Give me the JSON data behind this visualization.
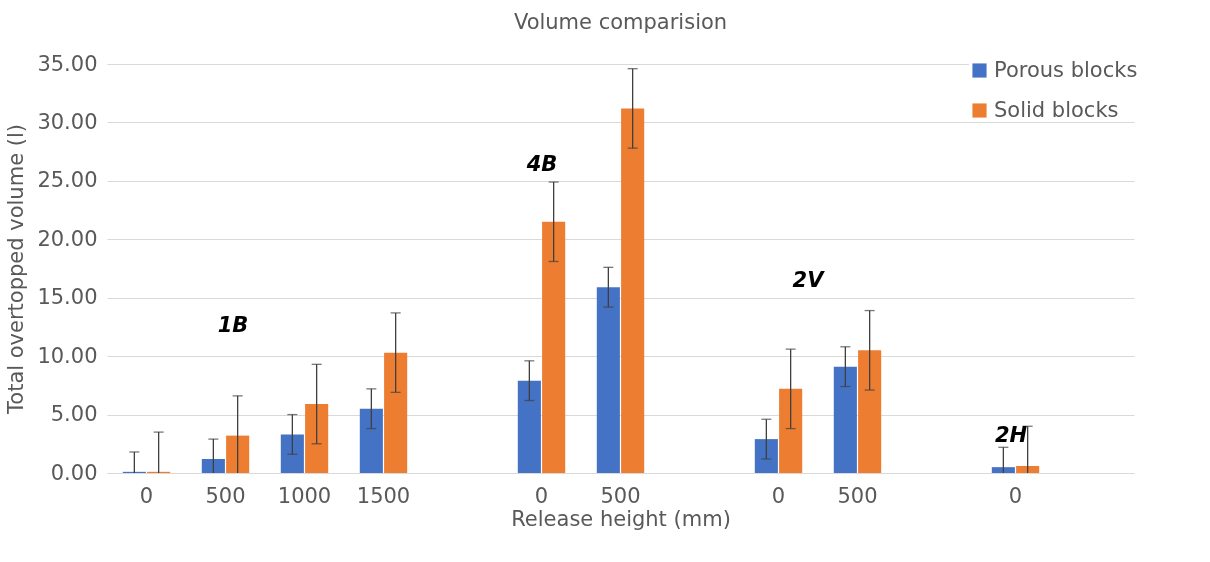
{
  "chart_data": {
    "type": "bar",
    "title": "Volume comparision",
    "xlabel": "Release height  (mm)",
    "ylabel": "Total overtopped volume (l)",
    "categories": [
      "0",
      "500",
      "1000",
      "1500",
      null,
      "0",
      "500",
      null,
      "0",
      "500",
      null,
      "0",
      null
    ],
    "series": [
      {
        "name": "Porous blocks",
        "color": "#4472c4",
        "values": [
          0.1,
          1.2,
          3.3,
          5.5,
          null,
          7.9,
          15.9,
          null,
          2.9,
          9.1,
          null,
          0.5,
          null
        ],
        "errors": [
          [
            0,
            1.8
          ],
          [
            0,
            2.9
          ],
          [
            1.6,
            5.0
          ],
          [
            3.8,
            7.2
          ],
          null,
          [
            6.2,
            9.6
          ],
          [
            14.2,
            17.6
          ],
          null,
          [
            1.2,
            4.6
          ],
          [
            7.4,
            10.8
          ],
          null,
          [
            0,
            2.2
          ],
          null
        ]
      },
      {
        "name": "Solid blocks",
        "color": "#ed7d31",
        "values": [
          0.1,
          3.2,
          5.9,
          10.3,
          null,
          21.5,
          31.2,
          null,
          7.2,
          10.5,
          null,
          0.6,
          null
        ],
        "errors": [
          [
            0,
            3.5
          ],
          [
            0,
            6.6
          ],
          [
            2.5,
            9.3
          ],
          [
            6.9,
            13.7
          ],
          null,
          [
            18.1,
            24.9
          ],
          [
            27.8,
            34.6
          ],
          null,
          [
            3.8,
            10.6
          ],
          [
            7.1,
            13.9
          ],
          null,
          [
            0,
            4.0
          ],
          null
        ]
      }
    ],
    "ylim": [
      0,
      35
    ],
    "yticks": [
      {
        "value": 0,
        "label": "0.00"
      },
      {
        "value": 5,
        "label": "5.00"
      },
      {
        "value": 10,
        "label": "10.00"
      },
      {
        "value": 15,
        "label": "15.00"
      },
      {
        "value": 20,
        "label": "20.00"
      },
      {
        "value": 25,
        "label": "25.00"
      },
      {
        "value": 30,
        "label": "30.00"
      },
      {
        "value": 35,
        "label": "35.00"
      }
    ],
    "grid": "y",
    "legend": "top right",
    "annotations": [
      "1B",
      "4B",
      "2V",
      "2H"
    ]
  }
}
